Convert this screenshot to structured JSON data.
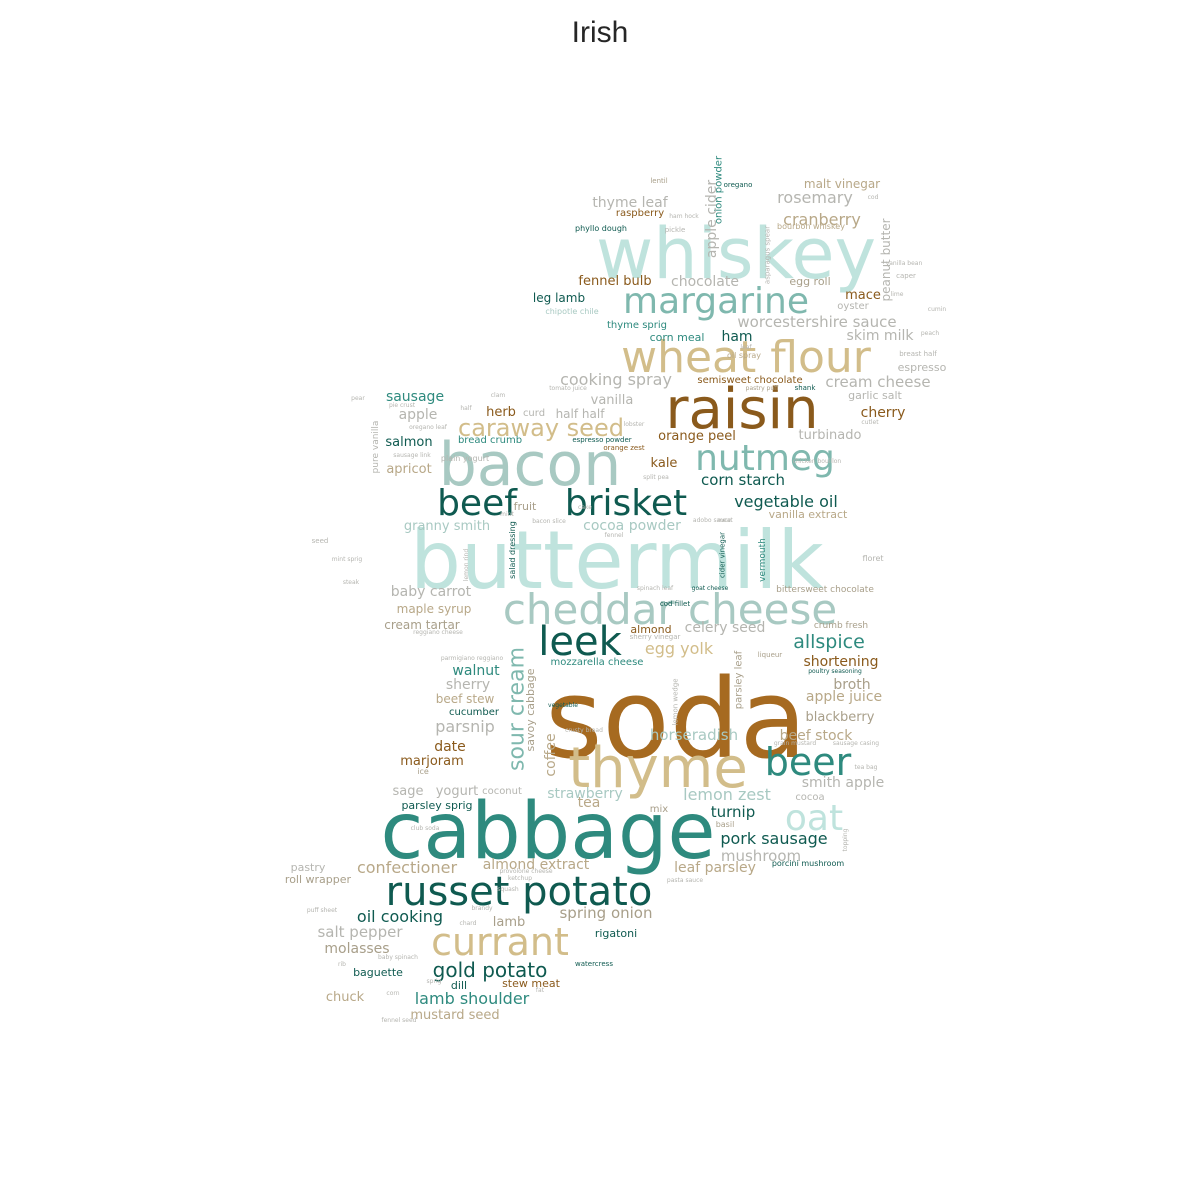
{
  "title": "Irish",
  "palette": {
    "dark_teal": "#0f5a50",
    "teal": "#2e8a7e",
    "mid_teal": "#7fb8ae",
    "light_teal": "#bfe3dd",
    "pale_teal": "#a8c9c2",
    "brown": "#a66a20",
    "dark_brown": "#8a5a1c",
    "tan": "#d2bd8a",
    "light_tan": "#b8a888",
    "grey_tan": "#a89f8a",
    "grey": "#b5b5b0"
  },
  "words": [
    "soda",
    "buttermilk",
    "cabbage",
    "whiskey",
    "raisin",
    "bacon",
    "thyme",
    "cheddar cheese",
    "wheat flour",
    "russet potato",
    "beef",
    "brisket",
    "margarine",
    "nutmeg",
    "currant",
    "beer",
    "leek",
    "oat",
    "sour cream",
    "caraway seed",
    "gold potato",
    "allspice",
    "malt vinegar",
    "rosemary",
    "cranberry",
    "thyme leaf",
    "raspberry",
    "phyllo dough",
    "apple cider",
    "onion powder",
    "peanut butter",
    "fennel bulb",
    "chocolate",
    "egg roll",
    "mace",
    "oyster",
    "leg lamb",
    "chipotle chile",
    "worcestershire sauce",
    "skim milk",
    "thyme sprig",
    "corn meal",
    "ham",
    "oil spray",
    "semisweet chocolate",
    "cream cheese",
    "espresso",
    "cooking spray",
    "pastry puff",
    "shank",
    "garlic salt",
    "sausage",
    "vanilla",
    "cherry",
    "apple",
    "herb",
    "curd",
    "half half",
    "turbinado",
    "salmon",
    "bread crumb",
    "espresso powder",
    "orange peel",
    "orange zest",
    "apricot",
    "pure vanilla",
    "kale",
    "split pea",
    "corn starch",
    "vegetable oil",
    "vanilla extract",
    "granny smith",
    "fruit",
    "cocoa powder",
    "salad dressing",
    "cider vinegar",
    "vermouth",
    "floret",
    "baby carrot",
    "bittersweet chocolate",
    "spinach leaf",
    "goat cheese",
    "cod fillet",
    "maple syrup",
    "cream tartar",
    "almond",
    "celery seed",
    "crumb fresh",
    "sherry vinegar",
    "egg yolk",
    "parsley leaf",
    "liqueur",
    "mozzarella cheese",
    "shortening",
    "walnut",
    "sherry",
    "beef stew",
    "broth",
    "apple juice",
    "cucumber",
    "savoy cabbage",
    "lemon wedge",
    "blackberry",
    "parsnip",
    "horseradish",
    "beef stock",
    "date",
    "coffee",
    "marjoram",
    "ice",
    "smith apple",
    "sage",
    "yogurt",
    "coconut",
    "strawberry",
    "cocoa",
    "parsley sprig",
    "tea",
    "mix",
    "lemon zest",
    "turnip",
    "basil",
    "pork sausage",
    "mushroom",
    "confectioner",
    "almond extract",
    "leaf parsley",
    "porcini mushroom",
    "pastry",
    "roll wrapper",
    "oil cooking",
    "spring onion",
    "lamb",
    "salt pepper",
    "rigatoni",
    "molasses",
    "baguette",
    "watercress",
    "stew meat",
    "dill",
    "lamb shoulder",
    "chuck",
    "mustard seed",
    "lentil",
    "oregano",
    "cod",
    "ham hock",
    "pickle",
    "bourbon whiskey",
    "asparagus spear",
    "vanilla bean",
    "caper",
    "lime",
    "cumin",
    "breast half",
    "peach",
    "cutlet",
    "clam",
    "pear",
    "pie crust",
    "oregano leaf",
    "sausage link",
    "plain yogurt",
    "tomato juice",
    "lobster",
    "half",
    "leaf",
    "adobo sauce",
    "chicken bouillon",
    "mint",
    "bacon slice",
    "cake",
    "fennel",
    "meat",
    "seed",
    "mint sprig",
    "lemon rind",
    "steak",
    "reggiano cheese",
    "parmigiano reggiano",
    "poultry seasoning",
    "vegetable",
    "crusty bread",
    "grain mustard",
    "sausage casing",
    "tea bag",
    "club soda",
    "provolone cheese",
    "pasta sauce",
    "squash",
    "ketchup",
    "brandy",
    "chard",
    "puff sheet",
    "baby spinach",
    "rib",
    "sprig",
    "corn",
    "fennel seed",
    "topping",
    "fat"
  ]
}
